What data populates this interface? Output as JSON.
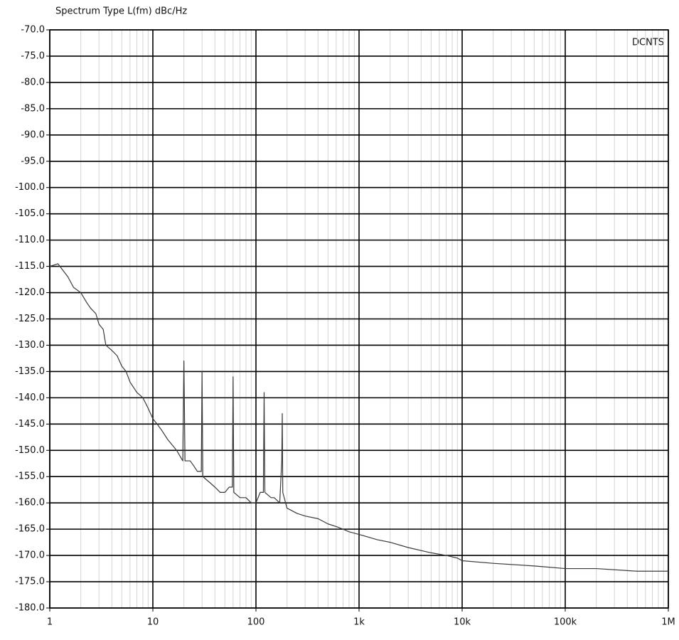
{
  "chart_data": {
    "type": "line",
    "title": "Spectrum Type  L(fm) dBc/Hz",
    "annotation": "DCNTS",
    "x": [
      1,
      1.2,
      1.5,
      1.7,
      2,
      2.3,
      2.5,
      2.8,
      3,
      3.3,
      3.5,
      4,
      4.5,
      5,
      5.5,
      6,
      7,
      8,
      9,
      10,
      11,
      12,
      14,
      17,
      19.5,
      20,
      20.5,
      23,
      25,
      27,
      29.5,
      30,
      30.5,
      35,
      40,
      45,
      50,
      55,
      59,
      60,
      61,
      70,
      80,
      90,
      100,
      110,
      118,
      120,
      122,
      140,
      150,
      170,
      178,
      180,
      182,
      200,
      250,
      300,
      400,
      500,
      600,
      700,
      800,
      1000,
      1500,
      2000,
      3000,
      5000,
      7000,
      9000,
      10000,
      20000,
      50000,
      100000,
      200000,
      500000,
      1000000
    ],
    "series": [
      {
        "name": "DCNTS",
        "color": "#3a3a3a",
        "values": [
          -115,
          -114.5,
          -117,
          -119,
          -120,
          -122,
          -123,
          -124,
          -126,
          -127,
          -130,
          -131,
          -132,
          -134,
          -135,
          -137,
          -139,
          -140,
          -142,
          -144,
          -145,
          -146,
          -148,
          -150,
          -152,
          -133,
          -152,
          -152,
          -153,
          -154,
          -154,
          -135,
          -155,
          -156,
          -157,
          -158,
          -158,
          -157,
          -157,
          -136,
          -158,
          -159,
          -159,
          -160,
          -160,
          -158,
          -158,
          -139,
          -158,
          -159,
          -159,
          -160,
          -152,
          -143,
          -158,
          -161,
          -162,
          -162.5,
          -163,
          -164,
          -164.5,
          -165,
          -165.5,
          -166,
          -167,
          -167.5,
          -168.5,
          -169.5,
          -170,
          -170.5,
          -171,
          -171.5,
          -172,
          -172.5,
          -172.5,
          -173,
          -173
        ]
      }
    ],
    "xlim": [
      1,
      1000000
    ],
    "log_x": true,
    "xticks": [
      1,
      10,
      100,
      {
        "value": 1000,
        "label": "1k"
      },
      {
        "value": 10000,
        "label": "10k"
      },
      {
        "value": 100000,
        "label": "100k"
      },
      {
        "value": 1000000,
        "label": "1M"
      }
    ],
    "ylim": [
      -180,
      -70
    ],
    "yticks": [
      {
        "value": -180,
        "label": "-180.0"
      },
      {
        "value": -175,
        "label": "-175.0"
      },
      {
        "value": -170,
        "label": "-170.0"
      },
      {
        "value": -165,
        "label": "-165.0"
      },
      {
        "value": -160,
        "label": "-160.0"
      },
      {
        "value": -155,
        "label": "-155.0"
      },
      {
        "value": -150,
        "label": "-150.0"
      },
      {
        "value": -145,
        "label": "-145.0"
      },
      {
        "value": -140,
        "label": "-140.0"
      },
      {
        "value": -135,
        "label": "-135.0"
      },
      {
        "value": -130,
        "label": "-130.0"
      },
      {
        "value": -125,
        "label": "-125.0"
      },
      {
        "value": -120,
        "label": "-120.0"
      },
      {
        "value": -115,
        "label": "-115.0"
      },
      {
        "value": -110,
        "label": "-110.0"
      },
      {
        "value": -105,
        "label": "-105.0"
      },
      {
        "value": -100,
        "label": "-100.0"
      },
      {
        "value": -95,
        "label": "-95.0"
      },
      {
        "value": -90,
        "label": "-90.0"
      },
      {
        "value": -85,
        "label": "-85.0"
      },
      {
        "value": -80,
        "label": "-80.0"
      },
      {
        "value": -75,
        "label": "-75.0"
      },
      {
        "value": -70,
        "label": "-70.0"
      }
    ],
    "grid": true,
    "minor_grid": true
  }
}
